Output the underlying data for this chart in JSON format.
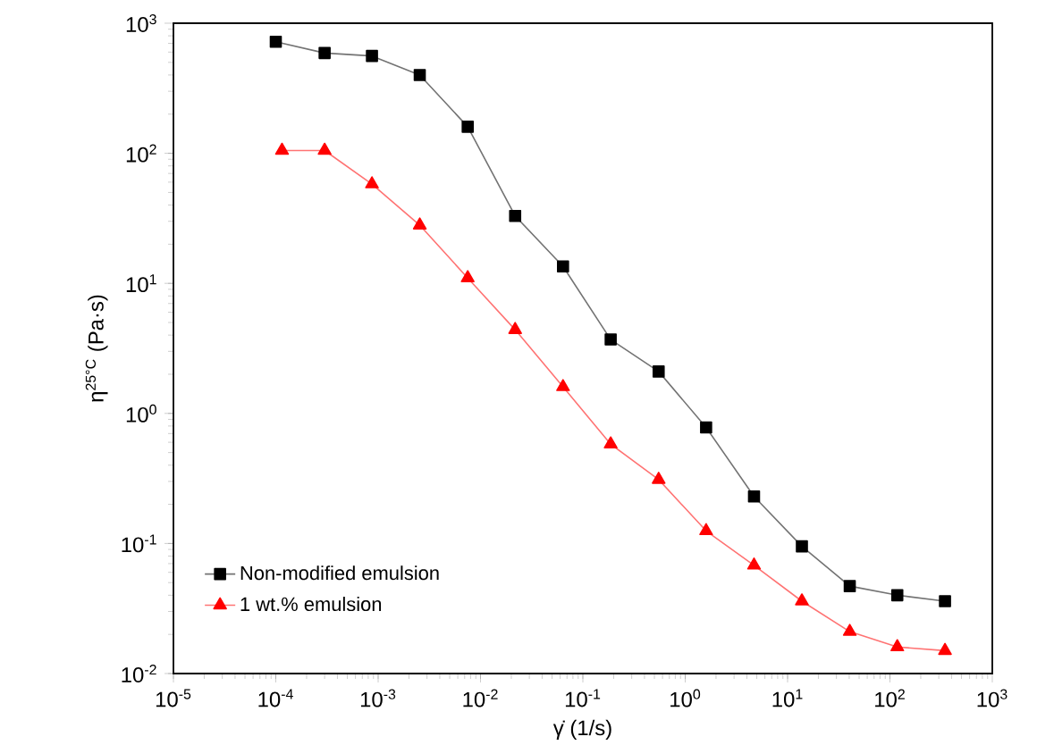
{
  "chart_data": {
    "type": "line",
    "xlabel": "γ̇ (1/s)",
    "ylabel": "η$^{25°C}$ (Pa·s)",
    "log": "xy",
    "legend": "bottom left",
    "xlim": [
      1e-05,
      1000
    ],
    "ylim": [
      0.01,
      1000
    ],
    "xticks": [
      {
        "value": 1e-05,
        "label": "10$^{-5}$"
      },
      {
        "value": 0.0001,
        "label": "10$^{-4}$"
      },
      {
        "value": 0.001,
        "label": "10$^{-3}$"
      },
      {
        "value": 0.01,
        "label": "10$^{-2}$"
      },
      {
        "value": 0.1,
        "label": "10$^{-1}$"
      },
      {
        "value": 1,
        "label": "10$^{0}$"
      },
      {
        "value": 10,
        "label": "10$^{1}$"
      },
      {
        "value": 100,
        "label": "10$^{2}$"
      },
      {
        "value": 1000,
        "label": "10$^{3}$"
      }
    ],
    "yticks": [
      {
        "value": 0.01,
        "label": "10$^{-2}$"
      },
      {
        "value": 0.1,
        "label": "10$^{-1}$"
      },
      {
        "value": 1,
        "label": "10$^{0}$"
      },
      {
        "value": 10,
        "label": "10$^{1}$"
      },
      {
        "value": 100,
        "label": "10$^{2}$"
      },
      {
        "value": 1000,
        "label": "10$^{3}$"
      }
    ],
    "series": [
      {
        "name": "Non-modified emulsion",
        "color": "#000000",
        "marker": "square",
        "x": [
          0.0001,
          0.0003,
          0.00087,
          0.00255,
          0.0075,
          0.0218,
          0.064,
          0.187,
          0.55,
          1.6,
          4.7,
          13.8,
          40.5,
          118,
          345
        ],
        "values": [
          720,
          590,
          560,
          400,
          160,
          33,
          13.5,
          3.7,
          2.1,
          0.78,
          0.23,
          0.095,
          0.047,
          0.04,
          0.036
        ]
      },
      {
        "name": "1 wt.% emulsion",
        "color": "#ff0000",
        "marker": "triangle",
        "x": [
          0.000115,
          0.0003,
          0.00087,
          0.00255,
          0.0075,
          0.0218,
          0.064,
          0.187,
          0.55,
          1.6,
          4.7,
          13.8,
          40.5,
          118,
          345
        ],
        "values": [
          105,
          105,
          58,
          28,
          11,
          4.4,
          1.6,
          0.58,
          0.31,
          0.125,
          0.068,
          0.036,
          0.021,
          0.016,
          0.015
        ]
      }
    ]
  }
}
